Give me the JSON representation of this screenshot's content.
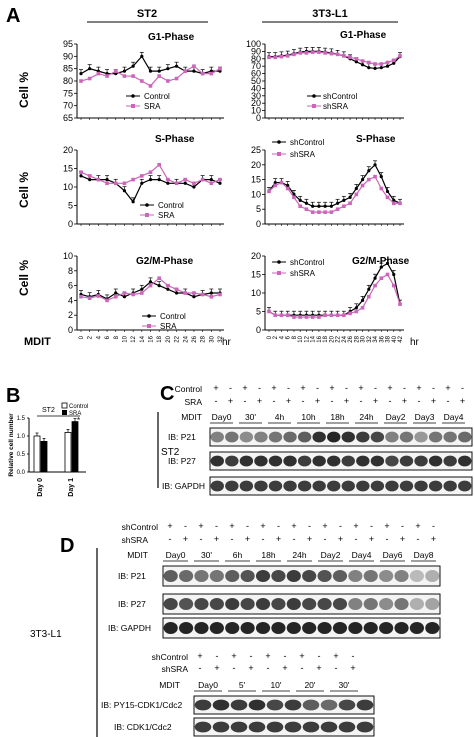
{
  "panel_letters": {
    "a": "A",
    "b": "B",
    "c": "C",
    "d": "D"
  },
  "panel_a": {
    "column_titles": [
      "ST2",
      "3T3-L1"
    ],
    "y_label": "Cell %",
    "mdit_label": "MDIT",
    "hr_label": "hr",
    "st2_x_ticks": [
      "0",
      "2",
      "4",
      "6",
      "8",
      "10",
      "12",
      "14",
      "16",
      "18",
      "20",
      "22",
      "24",
      "26",
      "28",
      "30",
      "32"
    ],
    "l1_x_ticks": [
      "0",
      "2",
      "4",
      "6",
      "8",
      "10",
      "12",
      "14",
      "16",
      "18",
      "20",
      "22",
      "24",
      "26",
      "28",
      "30",
      "32",
      "34",
      "36",
      "38",
      "40",
      "42"
    ],
    "plot_titles": [
      "G1-Phase",
      "S-Phase",
      "G2/M-Phase",
      "G1-Phase",
      "S-Phase",
      "G2/M-Phase"
    ],
    "legend_st2": [
      "Control",
      "SRA"
    ],
    "legend_l1": [
      "shControl",
      "shSRA"
    ]
  },
  "panel_b": {
    "header": "ST2",
    "legend": [
      "Control",
      "SRA"
    ],
    "y_label": "Relative cell number",
    "x_labels": [
      "Day 0",
      "Day 1"
    ],
    "y_ticks": [
      "0.0",
      "0.5",
      "1.0",
      "1.5"
    ],
    "asterisk": "*"
  },
  "panel_c": {
    "row_labels": [
      "Control",
      "SRA",
      "MDIT"
    ],
    "control_marks": [
      "+",
      "-",
      "+",
      "-",
      "+",
      "-",
      "+",
      "-",
      "+",
      "-",
      "+",
      "-",
      "+",
      "-",
      "+",
      "-",
      "+",
      "-"
    ],
    "sra_marks": [
      "-",
      "+",
      "-",
      "+",
      "-",
      "+",
      "-",
      "+",
      "-",
      "+",
      "-",
      "+",
      "-",
      "+",
      "-",
      "+",
      "-",
      "+"
    ],
    "timepoints": [
      "Day0",
      "30'",
      "4h",
      "10h",
      "18h",
      "24h",
      "Day2",
      "Day3",
      "Day4"
    ],
    "cell_label": "ST2",
    "blots": [
      "IB: P21",
      "IB: P27",
      "IB: GAPDH"
    ]
  },
  "panel_d": {
    "row_labels": [
      "shControl",
      "shSRA",
      "MDIT"
    ],
    "shcontrol_marks": [
      "+",
      "-",
      "+",
      "-",
      "+",
      "-",
      "+",
      "-",
      "+",
      "-",
      "+",
      "-",
      "+",
      "-",
      "+",
      "-",
      "+",
      "-"
    ],
    "shsra_marks": [
      "-",
      "+",
      "-",
      "+",
      "-",
      "+",
      "-",
      "+",
      "-",
      "+",
      "-",
      "+",
      "-",
      "+",
      "-",
      "+",
      "-",
      "+"
    ],
    "timepoints": [
      "Day0",
      "30'",
      "6h",
      "18h",
      "24h",
      "Day2",
      "Day4",
      "Day6",
      "Day8"
    ],
    "cell_label": "3T3-L1",
    "blots": [
      "IB: P21",
      "IB: P27",
      "IB: GAPDH"
    ],
    "lower_shcontrol_marks": [
      "+",
      "-",
      "+",
      "-",
      "+",
      "-",
      "+",
      "-",
      "+",
      "-"
    ],
    "lower_shsra_marks": [
      "-",
      "+",
      "-",
      "+",
      "-",
      "+",
      "-",
      "+",
      "-",
      "+"
    ],
    "lower_timepoints": [
      "Day0",
      "5'",
      "10'",
      "20'",
      "30'"
    ],
    "lower_blots": [
      "IB: PY15-CDK1/Cdc2",
      "IB: CDK1/Cdc2"
    ]
  },
  "chart_data": [
    {
      "type": "line",
      "title": "G1-Phase",
      "ylabel": "Cell %",
      "ylim": [
        65,
        95
      ],
      "y_ticks": [
        65,
        70,
        75,
        80,
        85,
        90,
        95
      ],
      "x": [
        0,
        2,
        4,
        6,
        8,
        10,
        12,
        14,
        16,
        18,
        20,
        22,
        24,
        26,
        28,
        30,
        32
      ],
      "series": [
        {
          "name": "Control",
          "values": [
            83,
            85,
            84,
            83,
            83,
            84,
            86,
            90,
            84,
            84,
            85,
            86,
            84,
            84,
            83,
            84,
            84
          ]
        },
        {
          "name": "SRA",
          "values": [
            80,
            81,
            83,
            82,
            84,
            82,
            82,
            80,
            78,
            82,
            80,
            81,
            84,
            86,
            83,
            83,
            85
          ]
        }
      ],
      "colors": {
        "Control": "#000000",
        "SRA": "#cc66bb"
      }
    },
    {
      "type": "line",
      "title": "S-Phase",
      "ylabel": "Cell %",
      "ylim": [
        0,
        20
      ],
      "y_ticks": [
        0,
        5,
        10,
        15,
        20
      ],
      "x": [
        0,
        2,
        4,
        6,
        8,
        10,
        12,
        14,
        16,
        18,
        20,
        22,
        24,
        26,
        28,
        30,
        32
      ],
      "series": [
        {
          "name": "Control",
          "values": [
            13,
            12,
            12,
            12,
            11,
            9,
            6,
            11,
            12,
            12,
            11,
            11,
            11,
            10,
            12,
            12,
            11
          ]
        },
        {
          "name": "SRA",
          "values": [
            14,
            13,
            12,
            11,
            11,
            11,
            12,
            13,
            14,
            16,
            12,
            11,
            12,
            11,
            12,
            11,
            12
          ]
        }
      ],
      "colors": {
        "Control": "#000000",
        "SRA": "#cc66bb"
      }
    },
    {
      "type": "line",
      "title": "G2/M-Phase",
      "ylabel": "Cell %",
      "ylim": [
        0,
        10
      ],
      "y_ticks": [
        0,
        2,
        4,
        6,
        8,
        10
      ],
      "x": [
        0,
        2,
        4,
        6,
        8,
        10,
        12,
        14,
        16,
        18,
        20,
        22,
        24,
        26,
        28,
        30,
        32
      ],
      "series": [
        {
          "name": "Control",
          "values": [
            4.8,
            4.5,
            4.8,
            4.2,
            5.0,
            4.5,
            5.0,
            5.5,
            6.5,
            6.0,
            5.5,
            5.0,
            5.0,
            4.5,
            4.8,
            5.0,
            5.0
          ]
        },
        {
          "name": "SRA",
          "values": [
            4.5,
            4.3,
            4.6,
            4.0,
            4.5,
            5.0,
            4.8,
            5.0,
            6.0,
            7.0,
            6.0,
            5.5,
            5.0,
            5.0,
            4.8,
            4.5,
            4.8
          ]
        }
      ],
      "colors": {
        "Control": "#000000",
        "SRA": "#cc66bb"
      }
    },
    {
      "type": "line",
      "title": "G1-Phase",
      "ylim": [
        0,
        100
      ],
      "y_ticks": [
        0,
        10,
        20,
        30,
        40,
        50,
        60,
        70,
        80,
        90,
        100
      ],
      "x": [
        0,
        2,
        4,
        6,
        8,
        10,
        12,
        14,
        16,
        18,
        20,
        22,
        24,
        26,
        28,
        30,
        32,
        34,
        36,
        38,
        40,
        42
      ],
      "series": [
        {
          "name": "shControl",
          "values": [
            83,
            83,
            84,
            85,
            87,
            89,
            90,
            90,
            90,
            89,
            88,
            86,
            84,
            80,
            76,
            72,
            68,
            67,
            68,
            70,
            74,
            83
          ]
        },
        {
          "name": "shSRA",
          "values": [
            82,
            82,
            83,
            84,
            86,
            88,
            88,
            89,
            89,
            88,
            87,
            86,
            84,
            82,
            80,
            77,
            75,
            73,
            73,
            75,
            78,
            84
          ]
        }
      ],
      "colors": {
        "shControl": "#000000",
        "shSRA": "#cc66bb"
      }
    },
    {
      "type": "line",
      "title": "S-Phase",
      "ylim": [
        0,
        25
      ],
      "y_ticks": [
        0,
        5,
        10,
        15,
        20,
        25
      ],
      "x": [
        0,
        2,
        4,
        6,
        8,
        10,
        12,
        14,
        16,
        18,
        20,
        22,
        24,
        26,
        28,
        30,
        32,
        34,
        36,
        38,
        40,
        42
      ],
      "series": [
        {
          "name": "shControl",
          "values": [
            11,
            14,
            14,
            13,
            10,
            8,
            7,
            6,
            6,
            6,
            6,
            7,
            8,
            9,
            12,
            15,
            18,
            20,
            16,
            11,
            8,
            7
          ]
        },
        {
          "name": "shSRA",
          "values": [
            11,
            13,
            14,
            12,
            9,
            6,
            5,
            4,
            4,
            4,
            4,
            5,
            6,
            7,
            10,
            13,
            15,
            16,
            12,
            9,
            7,
            7
          ]
        }
      ],
      "colors": {
        "shControl": "#000000",
        "shSRA": "#cc66bb"
      }
    },
    {
      "type": "line",
      "title": "G2/M-Phase",
      "ylim": [
        0,
        20
      ],
      "y_ticks": [
        0,
        5,
        10,
        15,
        20
      ],
      "x": [
        0,
        2,
        4,
        6,
        8,
        10,
        12,
        14,
        16,
        18,
        20,
        22,
        24,
        26,
        28,
        30,
        32,
        34,
        36,
        38,
        40,
        42
      ],
      "series": [
        {
          "name": "shControl",
          "values": [
            5,
            4,
            4,
            4,
            4,
            4,
            4,
            4,
            4,
            4,
            4,
            4,
            4,
            5,
            6,
            8,
            11,
            14,
            17,
            18,
            15,
            7
          ]
        },
        {
          "name": "shSRA",
          "values": [
            5,
            4,
            4,
            4,
            3.5,
            3.5,
            3.5,
            3.5,
            3.5,
            4,
            4,
            4,
            4,
            4.5,
            5,
            6,
            9,
            12,
            14,
            15,
            12,
            7
          ]
        }
      ],
      "colors": {
        "shControl": "#000000",
        "shSRA": "#cc66bb"
      }
    },
    {
      "type": "bar",
      "title": "",
      "ylabel": "Relative cell number",
      "ylim": [
        0,
        1.5
      ],
      "y_ticks": [
        0,
        0.5,
        1.0,
        1.5
      ],
      "categories": [
        "Day 0",
        "Day 1"
      ],
      "series": [
        {
          "name": "Control",
          "values": [
            1.0,
            1.1
          ]
        },
        {
          "name": "SRA",
          "values": [
            0.85,
            1.4
          ]
        }
      ],
      "colors": {
        "Control": "#ffffff",
        "SRA": "#000000"
      }
    }
  ]
}
